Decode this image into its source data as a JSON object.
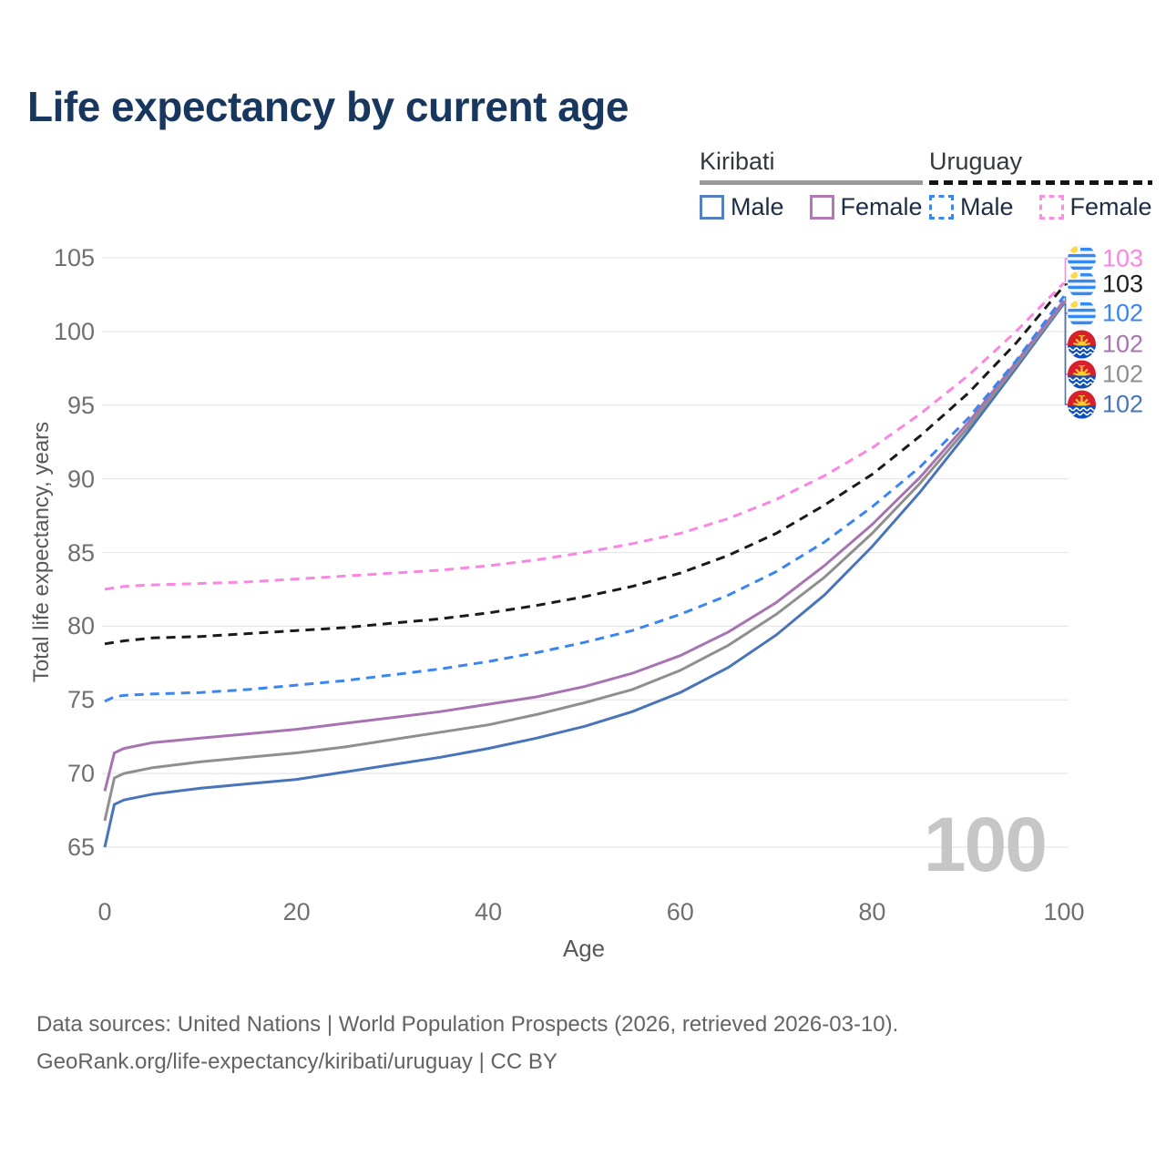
{
  "title": "Life expectancy by current age",
  "legend": {
    "groups": [
      {
        "name": "Kiribati",
        "style": "solid",
        "items": [
          {
            "label": "Male"
          },
          {
            "label": "Female"
          }
        ]
      },
      {
        "name": "Uruguay",
        "style": "dashed",
        "items": [
          {
            "label": "Male"
          },
          {
            "label": "Female"
          }
        ]
      }
    ]
  },
  "watermark": "100",
  "footer": {
    "line1": "Data sources: United Nations | World Population Prospects (2026, retrieved 2026-03-10).",
    "line2": "GeoRank.org/life-expectancy/kiribati/uruguay | CC BY"
  },
  "chart_data": {
    "type": "line",
    "title": "Life expectancy by current age",
    "xlabel": "Age",
    "ylabel": "Total life expectancy, years",
    "xlim": [
      0,
      100
    ],
    "ylim": [
      65,
      105
    ],
    "x_ticks": [
      0,
      20,
      40,
      60,
      80,
      100
    ],
    "y_ticks": [
      65,
      70,
      75,
      80,
      85,
      90,
      95,
      100,
      105
    ],
    "grid": true,
    "legend_position": "top-right",
    "x": [
      0,
      1,
      2,
      5,
      10,
      15,
      20,
      25,
      30,
      35,
      40,
      45,
      50,
      55,
      60,
      65,
      70,
      75,
      80,
      85,
      90,
      95,
      100
    ],
    "series": [
      {
        "name": "Kiribati Male",
        "country": "Kiribati",
        "sex": "Male",
        "color": "#4a74ba",
        "dash": "solid",
        "values": [
          65.0,
          67.9,
          68.2,
          68.6,
          69.0,
          69.3,
          69.6,
          70.1,
          70.6,
          71.1,
          71.7,
          72.4,
          73.2,
          74.2,
          75.5,
          77.2,
          79.4,
          82.1,
          85.4,
          89.1,
          93.2,
          97.5,
          101.9
        ]
      },
      {
        "name": "Kiribati Total",
        "country": "Kiribati",
        "sex": "Total",
        "color": "#8f8f8f",
        "dash": "solid",
        "values": [
          66.8,
          69.7,
          70.0,
          70.4,
          70.8,
          71.1,
          71.4,
          71.8,
          72.3,
          72.8,
          73.3,
          74.0,
          74.8,
          75.7,
          77.0,
          78.7,
          80.8,
          83.3,
          86.3,
          89.7,
          93.5,
          97.7,
          102.0
        ]
      },
      {
        "name": "Kiribati Female",
        "country": "Kiribati",
        "sex": "Female",
        "color": "#a873b2",
        "dash": "solid",
        "values": [
          68.8,
          71.4,
          71.7,
          72.1,
          72.4,
          72.7,
          73.0,
          73.4,
          73.8,
          74.2,
          74.7,
          75.2,
          75.9,
          76.8,
          78.0,
          79.6,
          81.6,
          84.1,
          86.9,
          90.1,
          93.8,
          97.9,
          102.1
        ]
      },
      {
        "name": "Uruguay Male",
        "country": "Uruguay",
        "sex": "Male",
        "color": "#3b85f0",
        "dash": "dashed",
        "values": [
          74.9,
          75.2,
          75.3,
          75.4,
          75.5,
          75.7,
          76.0,
          76.3,
          76.7,
          77.1,
          77.6,
          78.2,
          78.9,
          79.7,
          80.8,
          82.1,
          83.7,
          85.7,
          88.1,
          90.8,
          94.1,
          98.0,
          102.4
        ]
      },
      {
        "name": "Uruguay Total",
        "country": "Uruguay",
        "sex": "Total",
        "color": "#1a1a1a",
        "dash": "dashed",
        "values": [
          78.8,
          78.9,
          79.0,
          79.2,
          79.3,
          79.5,
          79.7,
          79.9,
          80.2,
          80.5,
          80.9,
          81.4,
          82.0,
          82.7,
          83.6,
          84.8,
          86.3,
          88.2,
          90.3,
          92.9,
          95.8,
          99.2,
          103.1
        ]
      },
      {
        "name": "Uruguay Female",
        "country": "Uruguay",
        "sex": "Female",
        "color": "#f986e3",
        "dash": "dashed",
        "values": [
          82.5,
          82.6,
          82.7,
          82.8,
          82.9,
          83.0,
          83.2,
          83.4,
          83.6,
          83.8,
          84.1,
          84.5,
          85.0,
          85.6,
          86.3,
          87.3,
          88.6,
          90.2,
          92.1,
          94.4,
          97.0,
          100.0,
          103.3
        ]
      }
    ],
    "end_labels": [
      {
        "value": "103",
        "series": "Uruguay Female",
        "flag": "uy",
        "color": "#f986e3"
      },
      {
        "value": "103",
        "series": "Uruguay Total",
        "flag": "uy",
        "color": "#1a1a1a"
      },
      {
        "value": "102",
        "series": "Uruguay Male",
        "flag": "uy",
        "color": "#3b85f0"
      },
      {
        "value": "102",
        "series": "Kiribati Female",
        "flag": "ki",
        "color": "#a873b2"
      },
      {
        "value": "102",
        "series": "Kiribati Total",
        "flag": "ki",
        "color": "#8f8f8f"
      },
      {
        "value": "102",
        "series": "Kiribati Male",
        "flag": "ki",
        "color": "#4a74ba"
      }
    ]
  }
}
